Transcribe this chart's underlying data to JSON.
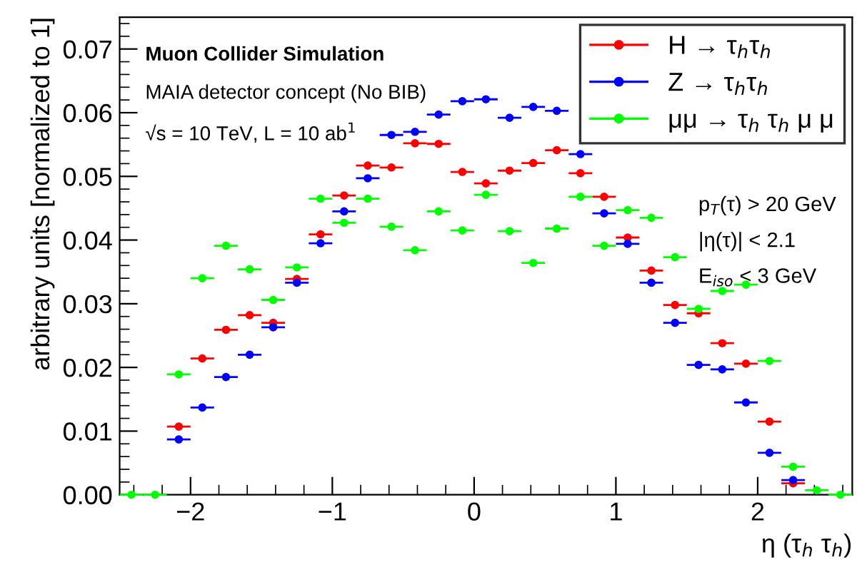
{
  "chart_data": {
    "type": "scatter",
    "xlabel": "η (τ$_{h}$ τ$_{h}$)",
    "ylabel": "arbitrary units [normalized to 1]",
    "annotations": [
      "Muon Collider Simulation",
      "MAIA detector concept (No BIB)",
      "√s = 10 TeV, L = 10 ab$^{1}$",
      "p$_{T}$(τ) > 20 GeV",
      "|η(τ)| < 2.1",
      "E$_{iso}$ < 3 GeV"
    ],
    "x": [
      -2.417,
      -2.25,
      -2.083,
      -1.917,
      -1.75,
      -1.583,
      -1.417,
      -1.25,
      -1.083,
      -0.917,
      -0.75,
      -0.583,
      -0.417,
      -0.25,
      -0.083,
      0.083,
      0.25,
      0.417,
      0.583,
      0.75,
      0.917,
      1.083,
      1.25,
      1.417,
      1.583,
      1.75,
      1.917,
      2.083,
      2.25,
      2.417,
      2.583
    ],
    "series": [
      {
        "name": "H → τ$_{h}$τ$_{h}$",
        "color": "#ff0000",
        "values": [
          null,
          null,
          0.0107,
          0.0214,
          0.0259,
          0.0282,
          0.027,
          0.0339,
          0.0409,
          0.047,
          0.0517,
          0.0514,
          0.0552,
          0.0551,
          0.0507,
          0.0489,
          0.0509,
          0.0521,
          0.0541,
          0.0505,
          0.0468,
          0.0404,
          0.0352,
          0.0298,
          0.0285,
          0.0238,
          0.0206,
          0.0115,
          0.0018,
          null,
          null
        ],
        "xerrors": [
          null,
          null,
          0.083,
          0.083,
          0.083,
          0.083,
          0.083,
          0.083,
          0.083,
          0.083,
          0.083,
          0.083,
          0.083,
          0.083,
          0.083,
          0.083,
          0.083,
          0.083,
          0.083,
          0.083,
          0.083,
          0.083,
          0.083,
          0.083,
          0.083,
          0.083,
          0.083,
          0.083,
          0.083,
          null,
          null
        ]
      },
      {
        "name": "Z → τ$_{h}$τ$_{h}$",
        "color": "#0000ff",
        "values": [
          null,
          null,
          0.0087,
          0.0137,
          0.0185,
          0.022,
          0.0263,
          0.0333,
          0.0395,
          0.0445,
          0.0497,
          0.0565,
          0.057,
          0.0597,
          0.0618,
          0.0621,
          0.0592,
          0.0609,
          0.0603,
          0.0535,
          0.0442,
          0.0394,
          0.0333,
          0.027,
          0.0204,
          0.0197,
          0.0145,
          0.0066,
          0.0023,
          null,
          null
        ],
        "xerrors": [
          null,
          null,
          0.083,
          0.083,
          0.083,
          0.083,
          0.083,
          0.083,
          0.083,
          0.083,
          0.083,
          0.083,
          0.083,
          0.083,
          0.083,
          0.083,
          0.083,
          0.083,
          0.083,
          0.083,
          0.083,
          0.083,
          0.083,
          0.083,
          0.083,
          0.083,
          0.083,
          0.083,
          0.083,
          null,
          null
        ]
      },
      {
        "name": "μμ → τ$_{h}$ τ$_{h}$ μ μ",
        "color": "#00ff00",
        "values": [
          0,
          0,
          0.0189,
          0.034,
          0.0391,
          0.0354,
          0.0306,
          0.0357,
          0.0465,
          0.0427,
          0.0465,
          0.0421,
          0.0384,
          0.0445,
          0.0415,
          0.0471,
          0.0414,
          0.0364,
          0.0418,
          0.0468,
          0.0391,
          0.0447,
          0.0435,
          0.0373,
          0.0292,
          0.032,
          0.033,
          0.021,
          0.0044,
          0.0007,
          0
        ],
        "xerrors": [
          0.083,
          0.083,
          0.083,
          0.083,
          0.083,
          0.083,
          0.083,
          0.083,
          0.083,
          0.083,
          0.083,
          0.083,
          0.083,
          0.083,
          0.083,
          0.083,
          0.083,
          0.083,
          0.083,
          0.083,
          0.083,
          0.083,
          0.083,
          0.083,
          0.083,
          0.083,
          0.083,
          0.083,
          0.083,
          0.083,
          0.083
        ]
      }
    ],
    "xlim": [
      -2.5,
      2.667
    ],
    "ylim": [
      0,
      0.075
    ],
    "xticks": [
      {
        "value": -2,
        "label": "−2"
      },
      {
        "value": -1,
        "label": "−1"
      },
      0,
      1,
      2
    ],
    "yticks": [
      {
        "value": 0,
        "label": "0.00"
      },
      0.01,
      0.02,
      0.03,
      0.04,
      0.05,
      0.06,
      0.07
    ],
    "grid": false,
    "legend": "top right",
    "marker": "circle"
  }
}
